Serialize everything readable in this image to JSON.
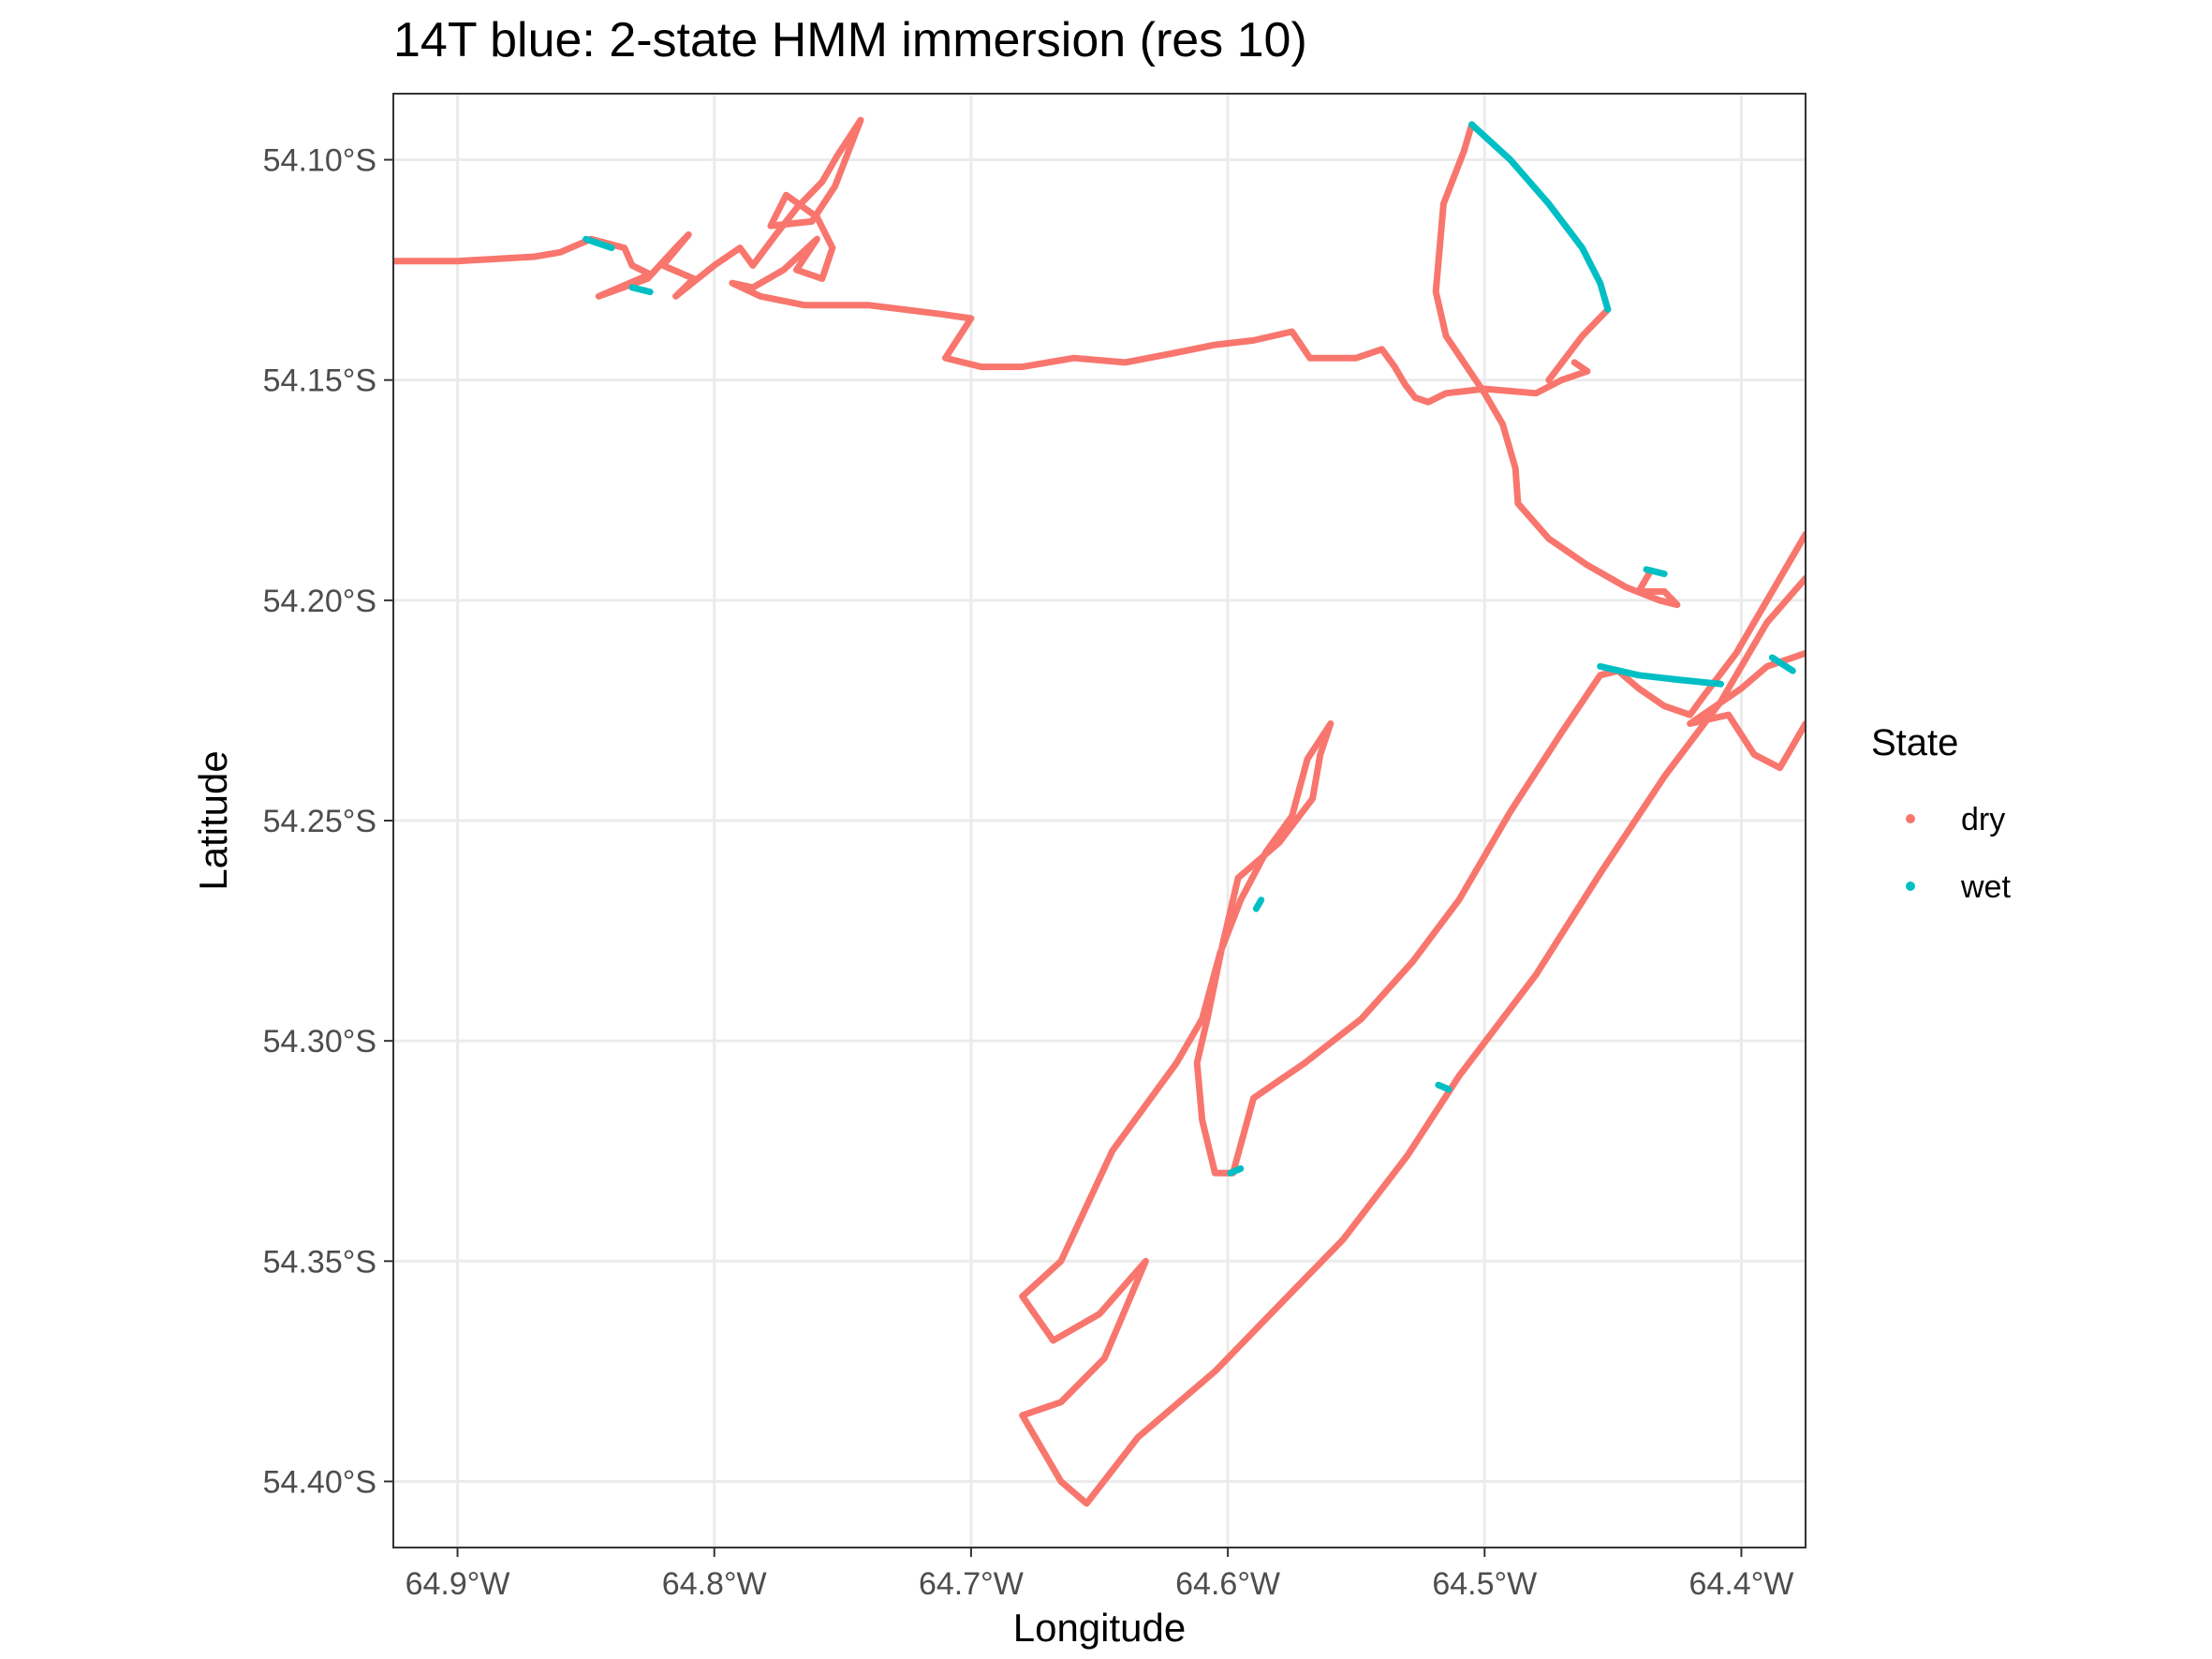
{
  "chart_data": {
    "type": "scatter",
    "title": "14T blue: 2-state HMM immersion (res 10)",
    "xlabel": "Longitude",
    "ylabel": "Latitude",
    "xlim": [
      -64.925,
      -64.375
    ],
    "ylim": [
      -54.415,
      -54.085
    ],
    "x_ticks": [
      {
        "value": -64.9,
        "label": "64.9°W"
      },
      {
        "value": -64.8,
        "label": "64.8°W"
      },
      {
        "value": -64.7,
        "label": "64.7°W"
      },
      {
        "value": -64.6,
        "label": "64.6°W"
      },
      {
        "value": -64.5,
        "label": "64.5°W"
      },
      {
        "value": -64.4,
        "label": "64.4°W"
      }
    ],
    "y_ticks": [
      {
        "value": -54.1,
        "label": "54.10°S"
      },
      {
        "value": -54.15,
        "label": "54.15°S"
      },
      {
        "value": -54.2,
        "label": "54.20°S"
      },
      {
        "value": -54.25,
        "label": "54.25°S"
      },
      {
        "value": -54.3,
        "label": "54.30°S"
      },
      {
        "value": -54.35,
        "label": "54.35°S"
      },
      {
        "value": -54.4,
        "label": "54.40°S"
      }
    ],
    "grid": true,
    "legend": {
      "title": "State",
      "position": "right",
      "entries": [
        {
          "label": "dry",
          "color": "#F8766D"
        },
        {
          "label": "wet",
          "color": "#00BFC4"
        }
      ]
    },
    "series": [
      {
        "name": "dry",
        "color": "#F8766D",
        "segments": [
          [
            [
              -64.925,
              -54.123
            ],
            [
              -64.9,
              -54.123
            ],
            [
              -64.87,
              -54.122
            ],
            [
              -64.86,
              -54.121
            ],
            [
              -64.848,
              -54.118
            ],
            [
              -64.835,
              -54.12
            ],
            [
              -64.832,
              -54.124
            ],
            [
              -64.825,
              -54.126
            ],
            [
              -64.845,
              -54.131
            ],
            [
              -64.826,
              -54.127
            ],
            [
              -64.815,
              -54.12
            ],
            [
              -64.81,
              -54.117
            ],
            [
              -64.82,
              -54.124
            ],
            [
              -64.808,
              -54.127
            ],
            [
              -64.815,
              -54.131
            ],
            [
              -64.8,
              -54.124
            ],
            [
              -64.79,
              -54.12
            ],
            [
              -64.785,
              -54.124
            ],
            [
              -64.776,
              -54.117
            ],
            [
              -64.768,
              -54.111
            ],
            [
              -64.758,
              -54.105
            ],
            [
              -64.752,
              -54.099
            ],
            [
              -64.743,
              -54.091
            ],
            [
              -64.753,
              -54.106
            ],
            [
              -64.762,
              -54.114
            ],
            [
              -64.778,
              -54.115
            ],
            [
              -64.772,
              -54.108
            ],
            [
              -64.76,
              -54.113
            ],
            [
              -64.754,
              -54.12
            ],
            [
              -64.758,
              -54.127
            ],
            [
              -64.768,
              -54.125
            ],
            [
              -64.76,
              -54.118
            ],
            [
              -64.773,
              -54.125
            ],
            [
              -64.785,
              -54.129
            ],
            [
              -64.793,
              -54.128
            ],
            [
              -64.782,
              -54.131
            ],
            [
              -64.765,
              -54.133
            ],
            [
              -64.74,
              -54.133
            ],
            [
              -64.712,
              -54.135
            ],
            [
              -64.7,
              -54.136
            ],
            [
              -64.71,
              -54.145
            ],
            [
              -64.696,
              -54.147
            ],
            [
              -64.68,
              -54.147
            ],
            [
              -64.66,
              -54.145
            ],
            [
              -64.64,
              -54.146
            ],
            [
              -64.622,
              -54.144
            ],
            [
              -64.605,
              -54.142
            ],
            [
              -64.59,
              -54.141
            ],
            [
              -64.575,
              -54.139
            ],
            [
              -64.568,
              -54.145
            ],
            [
              -64.55,
              -54.145
            ],
            [
              -64.54,
              -54.143
            ],
            [
              -64.535,
              -54.147
            ],
            [
              -64.531,
              -54.151
            ],
            [
              -64.527,
              -54.154
            ],
            [
              -64.522,
              -54.155
            ],
            [
              -64.515,
              -54.153
            ],
            [
              -64.5,
              -54.152
            ],
            [
              -64.48,
              -54.153
            ],
            [
              -64.47,
              -54.15
            ],
            [
              -64.46,
              -54.148
            ],
            [
              -64.465,
              -54.146
            ]
          ],
          [
            [
              -64.505,
              -54.092
            ],
            [
              -64.508,
              -54.098
            ],
            [
              -64.516,
              -54.11
            ],
            [
              -64.519,
              -54.13
            ],
            [
              -64.515,
              -54.14
            ],
            [
              -64.5,
              -54.153
            ],
            [
              -64.493,
              -54.16
            ],
            [
              -64.488,
              -54.17
            ],
            [
              -64.487,
              -54.178
            ],
            [
              -64.475,
              -54.186
            ],
            [
              -64.46,
              -54.192
            ],
            [
              -64.445,
              -54.197
            ],
            [
              -64.432,
              -54.2
            ],
            [
              -64.425,
              -54.201
            ],
            [
              -64.43,
              -54.198
            ],
            [
              -64.44,
              -54.198
            ],
            [
              -64.436,
              -54.194
            ]
          ],
          [
            [
              -64.452,
              -54.134
            ],
            [
              -64.462,
              -54.14
            ],
            [
              -64.475,
              -54.15
            ]
          ],
          [
            [
              -64.375,
              -54.185
            ],
            [
              -64.39,
              -54.2
            ],
            [
              -64.402,
              -54.212
            ],
            [
              -64.415,
              -54.222
            ],
            [
              -64.42,
              -54.226
            ],
            [
              -64.43,
              -54.224
            ],
            [
              -64.44,
              -54.22
            ],
            [
              -64.448,
              -54.216
            ],
            [
              -64.455,
              -54.217
            ],
            [
              -64.47,
              -54.23
            ],
            [
              -64.49,
              -54.248
            ],
            [
              -64.51,
              -54.268
            ],
            [
              -64.528,
              -54.282
            ],
            [
              -64.548,
              -54.295
            ],
            [
              -64.57,
              -54.305
            ],
            [
              -64.59,
              -54.313
            ],
            [
              -64.598,
              -54.33
            ],
            [
              -64.605,
              -54.33
            ],
            [
              -64.61,
              -54.318
            ],
            [
              -64.612,
              -54.305
            ],
            [
              -64.608,
              -54.295
            ],
            [
              -64.602,
              -54.278
            ],
            [
              -64.596,
              -54.263
            ],
            [
              -64.58,
              -54.255
            ],
            [
              -64.567,
              -54.245
            ],
            [
              -64.564,
              -54.235
            ],
            [
              -64.56,
              -54.228
            ],
            [
              -64.569,
              -54.236
            ],
            [
              -64.575,
              -54.249
            ],
            [
              -64.585,
              -54.257
            ],
            [
              -64.595,
              -54.268
            ],
            [
              -64.603,
              -54.28
            ],
            [
              -64.61,
              -54.295
            ],
            [
              -64.62,
              -54.305
            ],
            [
              -64.645,
              -54.325
            ],
            [
              -64.665,
              -54.35
            ],
            [
              -64.68,
              -54.358
            ],
            [
              -64.668,
              -54.368
            ],
            [
              -64.65,
              -54.362
            ],
            [
              -64.632,
              -54.35
            ],
            [
              -64.648,
              -54.372
            ],
            [
              -64.665,
              -54.382
            ],
            [
              -64.68,
              -54.385
            ],
            [
              -64.665,
              -54.4
            ],
            [
              -64.655,
              -54.405
            ],
            [
              -64.635,
              -54.39
            ],
            [
              -64.605,
              -54.375
            ],
            [
              -64.58,
              -54.36
            ],
            [
              -64.555,
              -54.345
            ],
            [
              -64.53,
              -54.326
            ],
            [
              -64.51,
              -54.308
            ],
            [
              -64.48,
              -54.285
            ],
            [
              -64.455,
              -54.262
            ],
            [
              -64.43,
              -54.24
            ],
            [
              -64.408,
              -54.223
            ],
            [
              -64.39,
              -54.205
            ],
            [
              -64.375,
              -54.195
            ]
          ],
          [
            [
              -64.375,
              -54.212
            ],
            [
              -64.39,
              -54.215
            ],
            [
              -64.4,
              -54.22
            ],
            [
              -64.42,
              -54.228
            ],
            [
              -64.405,
              -54.226
            ],
            [
              -64.395,
              -54.235
            ],
            [
              -64.385,
              -54.238
            ],
            [
              -64.375,
              -54.228
            ]
          ]
        ]
      },
      {
        "name": "wet",
        "color": "#00BFC4",
        "segments": [
          [
            [
              -64.505,
              -54.092
            ],
            [
              -64.49,
              -54.1
            ],
            [
              -64.475,
              -54.11
            ],
            [
              -64.462,
              -54.12
            ],
            [
              -64.455,
              -54.128
            ],
            [
              -64.452,
              -54.134
            ]
          ],
          [
            [
              -64.455,
              -54.215
            ],
            [
              -64.44,
              -54.217
            ],
            [
              -64.425,
              -54.218
            ],
            [
              -64.408,
              -54.219
            ]
          ],
          [
            [
              -64.437,
              -54.193
            ],
            [
              -64.43,
              -54.194
            ]
          ],
          [
            [
              -64.85,
              -54.118
            ],
            [
              -64.84,
              -54.12
            ]
          ],
          [
            [
              -64.832,
              -54.129
            ],
            [
              -64.825,
              -54.13
            ]
          ],
          [
            [
              -64.388,
              -54.213
            ],
            [
              -64.38,
              -54.216
            ]
          ],
          [
            [
              -64.589,
              -54.27
            ],
            [
              -64.587,
              -54.268
            ]
          ],
          [
            [
              -64.518,
              -54.31
            ],
            [
              -64.514,
              -54.311
            ]
          ],
          [
            [
              -64.599,
              -54.33
            ],
            [
              -64.595,
              -54.329
            ]
          ]
        ]
      }
    ]
  }
}
